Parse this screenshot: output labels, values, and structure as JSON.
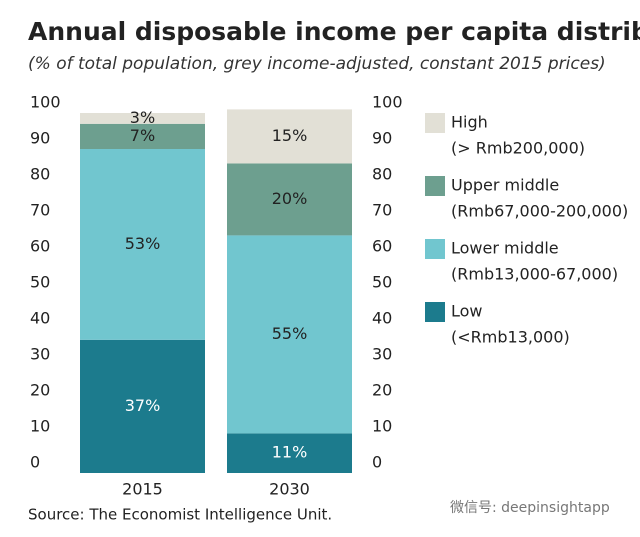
{
  "chart_data": {
    "type": "stacked-bar",
    "title": "Annual disposable income per capita distribution",
    "subtitle": "(% of total population, grey income-adjusted, constant 2015 prices)",
    "categories": [
      "2015",
      "2030"
    ],
    "series": [
      {
        "name": "Low",
        "range": "(<Rmb13,000)",
        "color": "#1c7b8d",
        "label_color": "#ffffff",
        "values": [
          37,
          11
        ],
        "value_labels": [
          "37%",
          "11%"
        ]
      },
      {
        "name": "Lower middle",
        "range": "(Rmb13,000-67,000)",
        "color": "#71c6cf",
        "label_color": "#222222",
        "values": [
          53,
          55
        ],
        "value_labels": [
          "53%",
          "55%"
        ]
      },
      {
        "name": "Upper middle",
        "range": "(Rmb67,000-200,000)",
        "color": "#6d9f8f",
        "label_color": "#222222",
        "values": [
          7,
          20
        ],
        "value_labels": [
          "7%",
          "20%"
        ]
      },
      {
        "name": "High",
        "range": "(> Rmb200,000)",
        "color": "#e2e0d6",
        "label_color": "#222222",
        "values": [
          3,
          15
        ],
        "value_labels": [
          "3%",
          "15%"
        ]
      }
    ],
    "ylim": [
      0,
      100
    ],
    "yticks": [
      0,
      10,
      20,
      30,
      40,
      50,
      60,
      70,
      80,
      90,
      100
    ],
    "source": "Source: The Economist Intelligence Unit.",
    "watermark": "微信号: deepinsightapp"
  }
}
